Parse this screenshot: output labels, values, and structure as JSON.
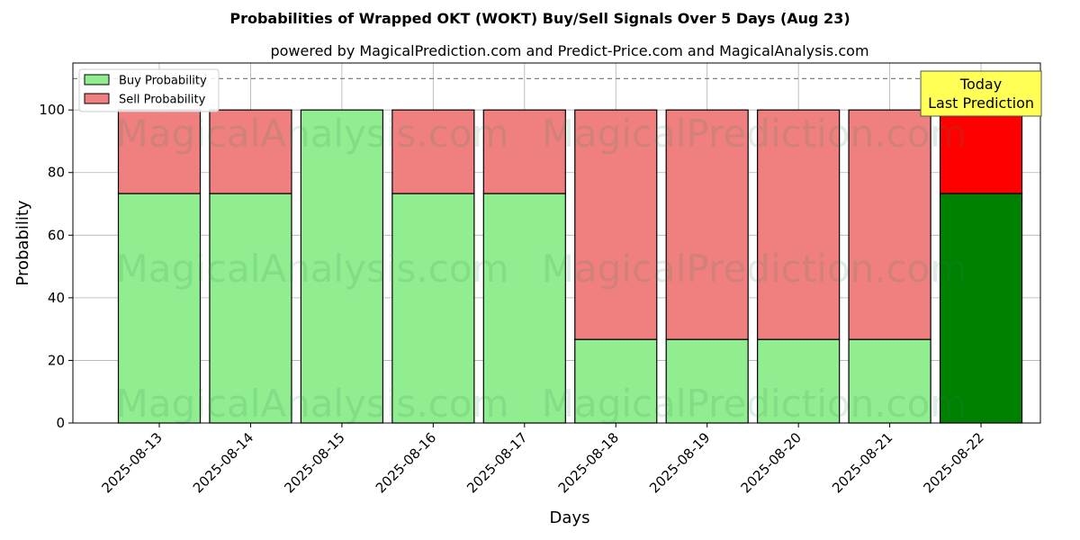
{
  "chart_data": {
    "type": "bar",
    "stacked": true,
    "title": "Probabilities of Wrapped OKT (WOKT) Buy/Sell Signals Over 5 Days (Aug 23)",
    "subtitle": "powered by MagicalPrediction.com and Predict-Price.com and MagicalAnalysis.com",
    "xlabel": "Days",
    "ylabel": "Probability",
    "ylim": [
      0,
      115
    ],
    "yticks": [
      0,
      20,
      40,
      60,
      80,
      100
    ],
    "reference_line": 110,
    "grid": true,
    "legend_position": "top-left",
    "categories": [
      "2025-08-13",
      "2025-08-14",
      "2025-08-15",
      "2025-08-16",
      "2025-08-17",
      "2025-08-18",
      "2025-08-19",
      "2025-08-20",
      "2025-08-21",
      "2025-08-22"
    ],
    "series": [
      {
        "name": "Buy Probability",
        "color": "#90ee90",
        "highlight_color": "#008000",
        "values": [
          73.3,
          73.3,
          100,
          73.3,
          73.3,
          26.7,
          26.7,
          26.7,
          26.7,
          73.3
        ]
      },
      {
        "name": "Sell Probability",
        "color": "#f08080",
        "highlight_color": "#ff0000",
        "values": [
          26.7,
          26.7,
          0,
          26.7,
          26.7,
          73.3,
          73.3,
          73.3,
          73.3,
          26.7
        ]
      }
    ],
    "highlight_index": 9,
    "annotation": {
      "lines": [
        "Today",
        "Last Prediction"
      ],
      "box_color": "#ffff55"
    },
    "watermarks": [
      "MagicalAnalysis.com",
      "MagicalPrediction.com"
    ]
  }
}
